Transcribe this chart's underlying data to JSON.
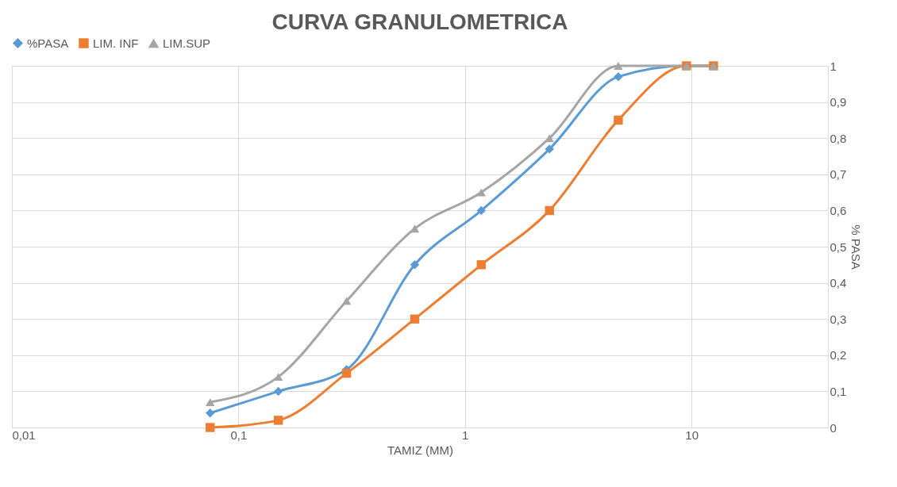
{
  "chart_data": {
    "type": "line",
    "title": "CURVA GRANULOMETRICA",
    "xlabel": "TAMIZ (MM)",
    "ylabel": "% PASA",
    "x": [
      0.075,
      0.15,
      0.3,
      0.6,
      1.18,
      2.36,
      4.75,
      9.5,
      12.5
    ],
    "series": [
      {
        "name": "%PASA",
        "color": "#5b9bd5",
        "marker": "diamond",
        "values": [
          0.04,
          0.1,
          0.16,
          0.45,
          0.6,
          0.77,
          0.97,
          1,
          1
        ]
      },
      {
        "name": "LIM. INF",
        "color": "#ed7d31",
        "marker": "square",
        "values": [
          0,
          0.02,
          0.15,
          0.3,
          0.45,
          0.6,
          0.85,
          1,
          1
        ]
      },
      {
        "name": "LIM.SUP",
        "color": "#a5a5a5",
        "marker": "triangle",
        "values": [
          0.07,
          0.14,
          0.35,
          0.55,
          0.65,
          0.8,
          1,
          1,
          1
        ]
      }
    ],
    "log": "x",
    "xlim": [
      0.01,
      40
    ],
    "xticks": [
      {
        "value": 0.01,
        "label": "0,01"
      },
      {
        "value": 0.1,
        "label": "0,1"
      },
      1,
      10
    ],
    "ylim": [
      0,
      1
    ],
    "yticks": [
      0,
      {
        "value": 0.1,
        "label": "0,1"
      },
      {
        "value": 0.2,
        "label": "0,2"
      },
      {
        "value": 0.3,
        "label": "0,3"
      },
      {
        "value": 0.4,
        "label": "0,4"
      },
      {
        "value": 0.5,
        "label": "0,5"
      },
      {
        "value": 0.6,
        "label": "0,6"
      },
      {
        "value": 0.7,
        "label": "0,7"
      },
      {
        "value": 0.8,
        "label": "0,8"
      },
      {
        "value": 0.9,
        "label": "0,9"
      },
      1
    ],
    "grid": true,
    "legend": "top",
    "line_style": "solid"
  }
}
